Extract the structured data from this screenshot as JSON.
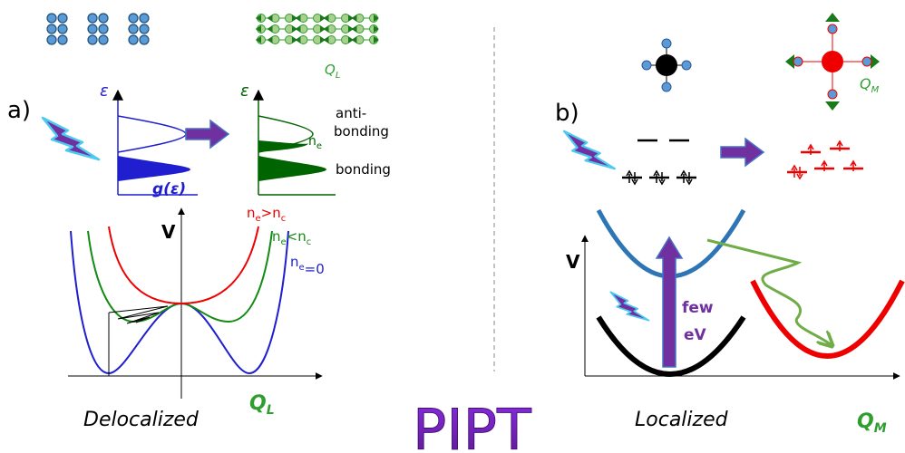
{
  "panel_a": {
    "label": "a)",
    "epsilon_1": "ε",
    "dos_axis": "g(ε)",
    "epsilon_2": "ε",
    "antibonding_1": "anti-",
    "antibonding_2": "bonding",
    "ne": [
      "n",
      "e"
    ],
    "bonding": "bonding",
    "top_mode": [
      "Q",
      "L"
    ],
    "potential_axis": "V",
    "curve_labels": [
      [
        "n",
        "e",
        ">n",
        "c"
      ],
      [
        "n",
        "e",
        "<n",
        "c"
      ],
      [
        "n",
        "e",
        "=0"
      ]
    ],
    "x_axis": [
      "Q",
      "L"
    ],
    "caption": "Delocalized"
  },
  "title": "PIPT",
  "panel_b": {
    "label": "b)",
    "top_mode": [
      "Q",
      "M"
    ],
    "potential_axis": "V",
    "energy_1": "few",
    "energy_2": "eV",
    "x_axis": [
      "Q",
      "M"
    ],
    "caption": "Localized"
  }
}
